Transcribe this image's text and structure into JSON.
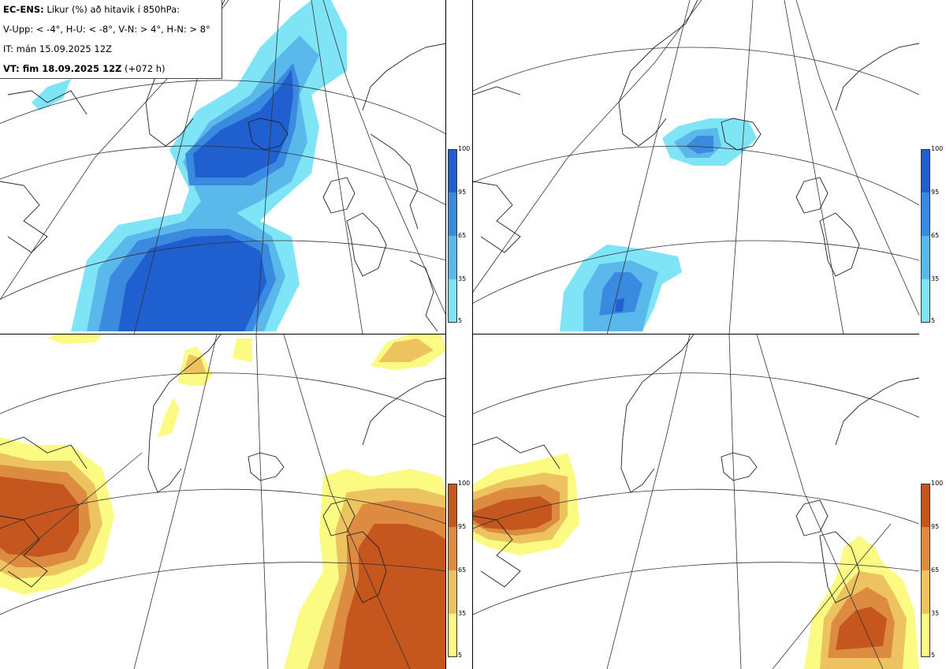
{
  "header": {
    "model_label": "EC-ENS:",
    "title": "Líkur (%) að hitavik í 850hPa:",
    "thresholds": "V-Upp: < -4°, H-U: < -8°, V-N: > 4°, H-N: > 8°",
    "initial_time": "IT: mán 15.09.2025 12Z",
    "valid_time_label": "VT: fim 18.09.2025 12Z",
    "valid_time_offset": "(+072 h)"
  },
  "legend_cold": {
    "ticks": [
      "100",
      "95",
      "65",
      "35",
      "5"
    ],
    "colors": [
      "#1f5fd0",
      "#3a8ae0",
      "#5ab8ea",
      "#7ee4f6"
    ]
  },
  "legend_warm": {
    "ticks": [
      "100",
      "95",
      "65",
      "35",
      "5"
    ],
    "colors": [
      "#c4561e",
      "#dc8b40",
      "#ecc35e",
      "#fbfb84"
    ]
  },
  "panels": [
    {
      "id": "V-Upp",
      "description_key": "cold-4"
    },
    {
      "id": "H-U",
      "description_key": "cold-8"
    },
    {
      "id": "V-N",
      "description_key": "warm+4"
    },
    {
      "id": "H-N",
      "description_key": "warm+8"
    }
  ]
}
